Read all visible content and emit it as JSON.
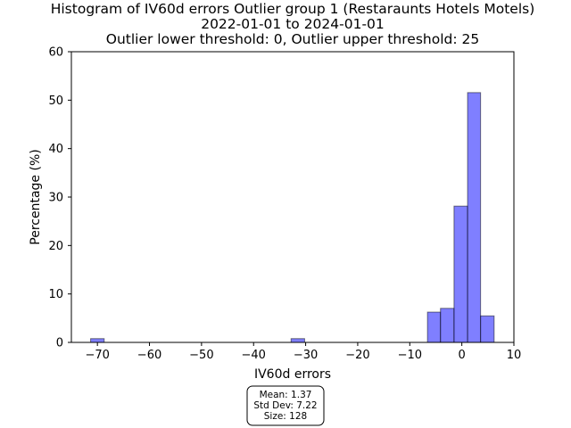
{
  "chart_data": {
    "type": "bar",
    "title": [
      "Histogram of IV60d errors Outlier group 1 (Restaraunts Hotels Motels)",
      "2022-01-01 to 2024-01-01",
      "Outlier lower threshold: 0, Outlier upper threshold: 25"
    ],
    "xlabel": "IV60d errors",
    "ylabel": "Percentage (%)",
    "xlim": [
      -75,
      10
    ],
    "ylim": [
      0,
      60
    ],
    "xticks": [
      -70,
      -60,
      -50,
      -40,
      -30,
      -20,
      -10,
      0,
      10
    ],
    "yticks": [
      0,
      10,
      20,
      30,
      40,
      50,
      60
    ],
    "bar_color": "#0000ff",
    "bar_opacity": 0.5,
    "bins": [
      {
        "x0": -71.3,
        "x1": -68.7,
        "value": 0.78
      },
      {
        "x0": -32.8,
        "x1": -30.2,
        "value": 0.78
      },
      {
        "x0": -6.6,
        "x1": -4.1,
        "value": 6.25
      },
      {
        "x0": -4.1,
        "x1": -1.5,
        "value": 7.03
      },
      {
        "x0": -1.5,
        "x1": 1.1,
        "value": 28.13
      },
      {
        "x0": 1.1,
        "x1": 3.6,
        "value": 51.56
      },
      {
        "x0": 3.6,
        "x1": 6.2,
        "value": 5.47
      }
    ],
    "stats_box": [
      "Mean: 1.37",
      "Std Dev: 7.22",
      "Size: 128"
    ]
  }
}
